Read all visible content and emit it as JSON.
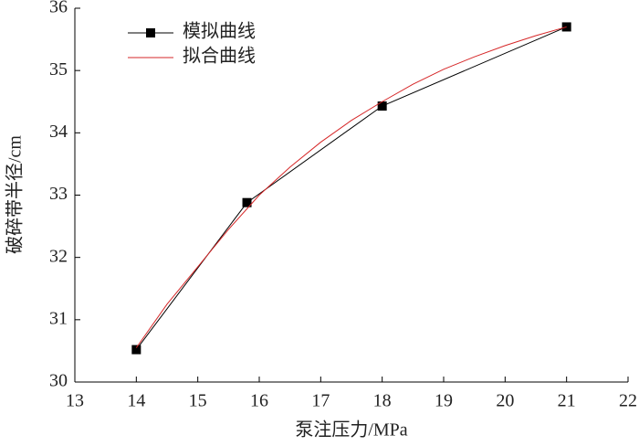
{
  "chart_data": {
    "type": "line",
    "x_label": "泵注压力/MPa",
    "y_label": "破碎带半径/cm",
    "xlim": [
      13,
      22
    ],
    "xticks": [
      13,
      14,
      15,
      16,
      17,
      18,
      19,
      20,
      21,
      22
    ],
    "ylim": [
      30,
      36
    ],
    "yticks": [
      30,
      31,
      32,
      33,
      34,
      35,
      36
    ],
    "legend": "upper left",
    "series": [
      {
        "name": "模拟曲线",
        "color": "#000000",
        "marker": "square",
        "x": [
          14,
          15.8,
          18,
          21
        ],
        "values": [
          30.52,
          32.88,
          34.43,
          35.7
        ]
      },
      {
        "name": "拟合曲线",
        "color": "#d62728",
        "marker": "none",
        "x": [
          14,
          14.5,
          15,
          15.5,
          16,
          16.5,
          17,
          17.5,
          18,
          18.5,
          19,
          19.5,
          20,
          20.5,
          21
        ],
        "values": [
          30.55,
          31.25,
          31.85,
          32.45,
          33.0,
          33.45,
          33.85,
          34.2,
          34.5,
          34.78,
          35.02,
          35.22,
          35.4,
          35.56,
          35.7
        ]
      }
    ]
  }
}
